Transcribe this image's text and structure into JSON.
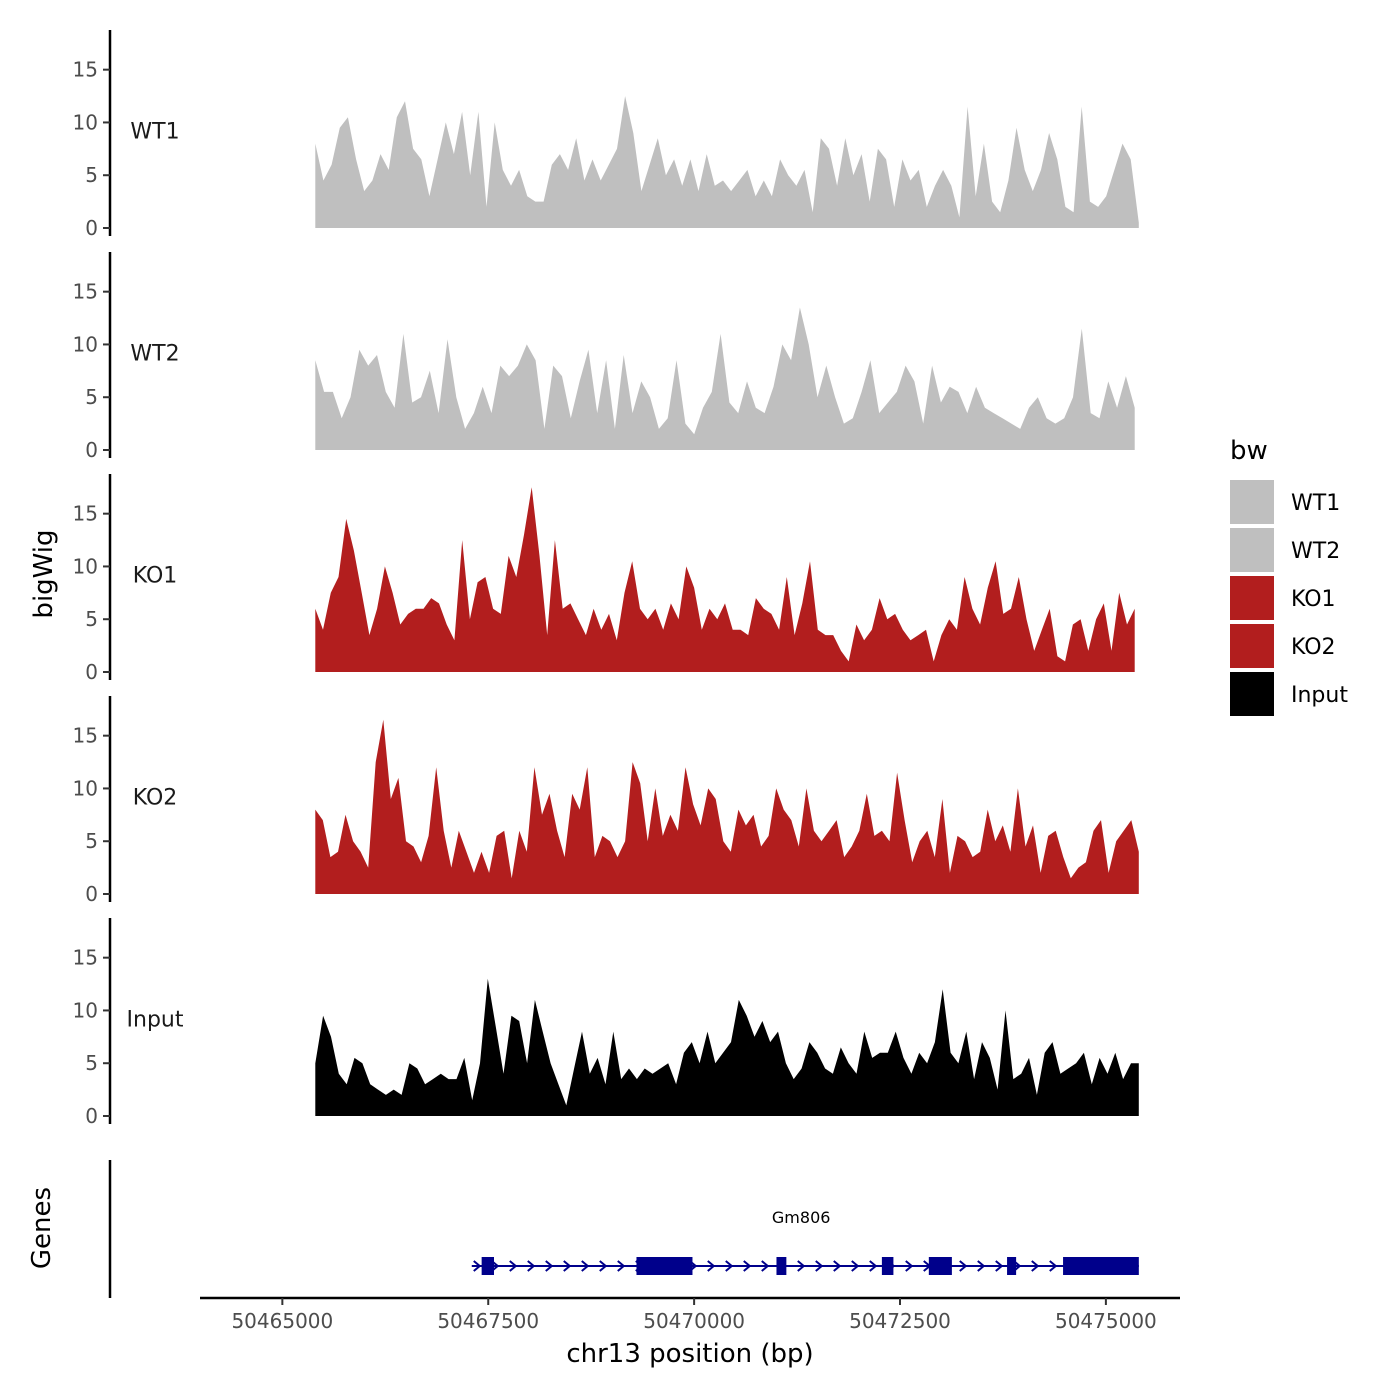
{
  "chart_data": {
    "type": "area",
    "title": "",
    "ylabel": "bigWig",
    "xlabel": "chr13 position (bp)",
    "genes_label": "Genes",
    "ylim": [
      0,
      18
    ],
    "y_ticks": [
      0,
      5,
      10,
      15
    ],
    "xlim": [
      50464000,
      50475900
    ],
    "x_ticks": [
      50465000,
      50467500,
      50470000,
      50472500,
      50475000
    ],
    "x_tick_labels": [
      "50465000",
      "50467500",
      "50470000",
      "50472500",
      "50475000"
    ],
    "legend": {
      "title": "bw",
      "position": "right",
      "entries": [
        {
          "label": "WT1",
          "color": "#bfbfbf"
        },
        {
          "label": "WT2",
          "color": "#bfbfbf"
        },
        {
          "label": "KO1",
          "color": "#b21e1e"
        },
        {
          "label": "KO2",
          "color": "#b21e1e"
        },
        {
          "label": "Input",
          "color": "#000000"
        }
      ]
    },
    "tracks": [
      {
        "name": "WT1",
        "color": "#bfbfbf",
        "x_start": 50465400,
        "x_end": 50475400,
        "values": [
          8,
          4.5,
          6,
          9.5,
          10.5,
          6.5,
          3.5,
          4.5,
          7,
          5.5,
          10.5,
          12,
          7.5,
          6.5,
          3,
          6.5,
          10,
          7,
          11,
          5,
          11,
          2,
          10,
          5.5,
          4,
          5.5,
          3,
          2.5,
          2.5,
          6,
          7,
          5.5,
          8.5,
          4.5,
          6.5,
          4.5,
          6,
          7.5,
          12.5,
          9,
          3.5,
          6,
          8.5,
          5,
          6.5,
          4,
          6.5,
          3.5,
          7,
          4,
          4.5,
          3.5,
          4.5,
          5.5,
          3,
          4.5,
          3,
          6.5,
          5,
          4,
          5.5,
          1.5,
          8.5,
          7.5,
          4,
          8.5,
          5,
          7,
          2.5,
          7.5,
          6.5,
          2,
          6.5,
          4.5,
          5.5,
          2,
          4,
          5.5,
          4,
          1,
          11.5,
          3,
          8,
          2.5,
          1.5,
          4.5,
          9.5,
          5.5,
          3.5,
          5.5,
          9,
          6.5,
          2,
          1.5,
          11.5,
          2.5,
          2,
          3,
          5.5,
          8,
          6.5,
          0.5
        ]
      },
      {
        "name": "WT2",
        "color": "#bfbfbf",
        "x_start": 50465400,
        "x_end": 50475350,
        "values": [
          8.5,
          5.5,
          5.5,
          3,
          5,
          9.5,
          8,
          9,
          5.5,
          4,
          11,
          4.5,
          5,
          7.5,
          3.5,
          10.5,
          5,
          2,
          3.5,
          6,
          3.5,
          8,
          7,
          8,
          10,
          8.5,
          2,
          8,
          7,
          3,
          6.5,
          9.5,
          3.5,
          8.5,
          2,
          9,
          3.5,
          6.5,
          5,
          2,
          3,
          8.5,
          2.5,
          1.5,
          4,
          5.5,
          11,
          4.5,
          3.5,
          6.5,
          4,
          3.5,
          6,
          10,
          8.5,
          13.5,
          10,
          5,
          8,
          5,
          2.5,
          3,
          5.5,
          8.5,
          3.5,
          4.5,
          5.5,
          8,
          6.5,
          2.5,
          8,
          4.5,
          6,
          5.5,
          3.5,
          6,
          4,
          3.5,
          3,
          2.5,
          2,
          4,
          5,
          3,
          2.5,
          3,
          5,
          11.5,
          3.5,
          3,
          6.5,
          4,
          7,
          4
        ]
      },
      {
        "name": "KO1",
        "color": "#b21e1e",
        "x_start": 50465400,
        "x_end": 50475350,
        "values": [
          6,
          4,
          7.5,
          9,
          14.5,
          11.5,
          7.5,
          3.5,
          6,
          10,
          7.5,
          4.5,
          5.5,
          6,
          6,
          7,
          6.5,
          4.5,
          3,
          12.5,
          5,
          8.5,
          9,
          6,
          5.5,
          11,
          9,
          13,
          17.5,
          11,
          3.5,
          12.5,
          6,
          6.5,
          5,
          3.5,
          6,
          4,
          5.5,
          3,
          7.5,
          10.5,
          6,
          5,
          6,
          4,
          6.5,
          5,
          10,
          8,
          4,
          6,
          5,
          6.5,
          4,
          4,
          3.5,
          7,
          6,
          5.5,
          4,
          9,
          3.5,
          6.5,
          10.5,
          4,
          3.5,
          3.5,
          2,
          1,
          4.5,
          3,
          4,
          7,
          5,
          5.5,
          4,
          3,
          3.5,
          4,
          1,
          3.5,
          5,
          4,
          9,
          6,
          4.5,
          8,
          10.5,
          5.5,
          6,
          9,
          5,
          2,
          4,
          6,
          1.5,
          1,
          4.5,
          5,
          2,
          5,
          6.5,
          2,
          7.5,
          4.5,
          6
        ]
      },
      {
        "name": "KO2",
        "color": "#b21e1e",
        "x_start": 50465400,
        "x_end": 50475400,
        "values": [
          8,
          7,
          3.5,
          4,
          7.5,
          5,
          4,
          2.5,
          12.5,
          16.5,
          9,
          11,
          5,
          4.5,
          3,
          5.5,
          12,
          6,
          2.5,
          6,
          4,
          2,
          4,
          2,
          5.5,
          6,
          1.5,
          6,
          4,
          12,
          7.5,
          9.5,
          6,
          3.5,
          9.5,
          8,
          12,
          3.5,
          5.5,
          5,
          3.5,
          5,
          12.5,
          10.5,
          5,
          10,
          5.5,
          7.5,
          6,
          12,
          8.5,
          6.5,
          10,
          9,
          5,
          4,
          8,
          6.5,
          7.5,
          4.5,
          5.5,
          10,
          8,
          7,
          4.5,
          10,
          6,
          5,
          6,
          7,
          3.5,
          4.5,
          6,
          9.5,
          5.5,
          6,
          5,
          11.5,
          7,
          3,
          5,
          6,
          3.5,
          9,
          2,
          5.5,
          5,
          3.5,
          4,
          8,
          5,
          6.5,
          4,
          10,
          4.5,
          6.5,
          2,
          5.5,
          6,
          3.5,
          1.5,
          2.5,
          3,
          6,
          7,
          2,
          5,
          6,
          7,
          4
        ]
      },
      {
        "name": "Input",
        "color": "#000000",
        "x_start": 50465400,
        "x_end": 50475400,
        "values": [
          5,
          9.5,
          7.5,
          4,
          3,
          5.5,
          5,
          3,
          2.5,
          2,
          2.5,
          2,
          5,
          4.5,
          3,
          3.5,
          4,
          3.5,
          3.5,
          5.5,
          1.5,
          5,
          13,
          8.5,
          4,
          9.5,
          9,
          5,
          11,
          8,
          5,
          3,
          1,
          4.5,
          8,
          4,
          5.5,
          3,
          8,
          3.5,
          4.5,
          3.5,
          4.5,
          4,
          4.5,
          5,
          3,
          6,
          7,
          5,
          8,
          5,
          6,
          7,
          11,
          9.5,
          7.5,
          9,
          7,
          8,
          5,
          3.5,
          4.5,
          7,
          6,
          4.5,
          4,
          6.5,
          5,
          4,
          8,
          5.5,
          6,
          6,
          8,
          5.5,
          4,
          6,
          5,
          7,
          12,
          6,
          5,
          8,
          3.5,
          7,
          5.5,
          2.5,
          10,
          3.5,
          4,
          5.5,
          2,
          6,
          7,
          4,
          4.5,
          5,
          6,
          3,
          5.5,
          4,
          6,
          3.5,
          5,
          5
        ]
      }
    ],
    "gene": {
      "name": "Gm806",
      "color": "#00008b",
      "start": 50467300,
      "end": 50475400,
      "strand": "+",
      "exons": [
        [
          50467420,
          50467570
        ],
        [
          50469300,
          50469980
        ],
        [
          50471000,
          50471120
        ],
        [
          50472280,
          50472420
        ],
        [
          50472850,
          50473130
        ],
        [
          50473800,
          50473910
        ],
        [
          50474480,
          50475400
        ]
      ]
    }
  }
}
